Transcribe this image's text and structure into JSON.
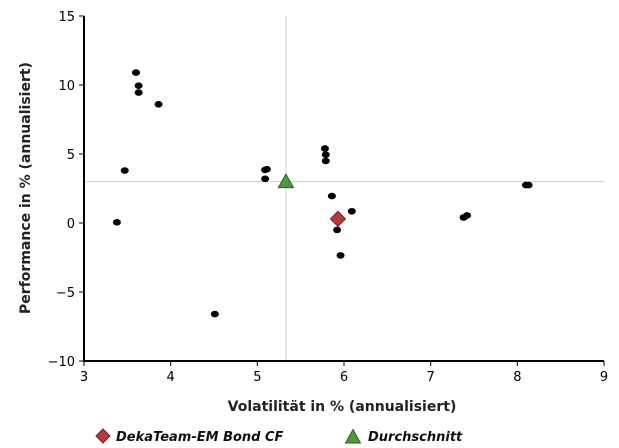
{
  "chart_data": {
    "type": "scatter",
    "xlabel": "Volatilität in % (annualisiert)",
    "ylabel": "Performance in % (annualisiert)",
    "xlim": [
      3,
      9
    ],
    "ylim": [
      -10,
      15
    ],
    "xticks": [
      "3",
      "4",
      "5",
      "6",
      "7",
      "8",
      "9"
    ],
    "yticks": [
      "15",
      "10",
      "5",
      "0",
      "−5",
      "−10"
    ],
    "grid": false,
    "reference_lines": {
      "x": 5.33,
      "y": 3.0
    },
    "series": [
      {
        "marker": "circle",
        "color": "#000000",
        "points": [
          [
            3.38,
            0.05
          ],
          [
            3.47,
            3.8
          ],
          [
            3.6,
            10.9
          ],
          [
            3.63,
            9.95
          ],
          [
            3.63,
            9.45
          ],
          [
            3.86,
            8.6
          ],
          [
            4.51,
            -6.6
          ],
          [
            5.09,
            3.85
          ],
          [
            5.11,
            3.9
          ],
          [
            5.09,
            3.2
          ],
          [
            5.78,
            5.4
          ],
          [
            5.79,
            4.95
          ],
          [
            5.79,
            4.5
          ],
          [
            5.86,
            1.95
          ],
          [
            5.92,
            -0.5
          ],
          [
            5.96,
            -2.35
          ],
          [
            6.09,
            0.85
          ],
          [
            7.38,
            0.4
          ],
          [
            7.42,
            0.55
          ],
          [
            8.1,
            2.75
          ],
          [
            8.13,
            2.75
          ]
        ]
      },
      {
        "name": "DekaTeam-EM Bond CF",
        "marker": "diamond",
        "color": "#b8393b",
        "points": [
          [
            5.93,
            0.3
          ]
        ]
      },
      {
        "name": "Durchschnitt",
        "marker": "triangle",
        "color": "#4e9a3a",
        "points": [
          [
            5.33,
            3.0
          ]
        ]
      }
    ],
    "legend": {
      "placement": "bottom-left",
      "entries": [
        {
          "label": "DekaTeam-EM Bond CF",
          "marker": "diamond",
          "color": "#b8393b"
        },
        {
          "label": "Durchschnitt",
          "marker": "triangle",
          "color": "#4e9a3a"
        }
      ]
    }
  }
}
